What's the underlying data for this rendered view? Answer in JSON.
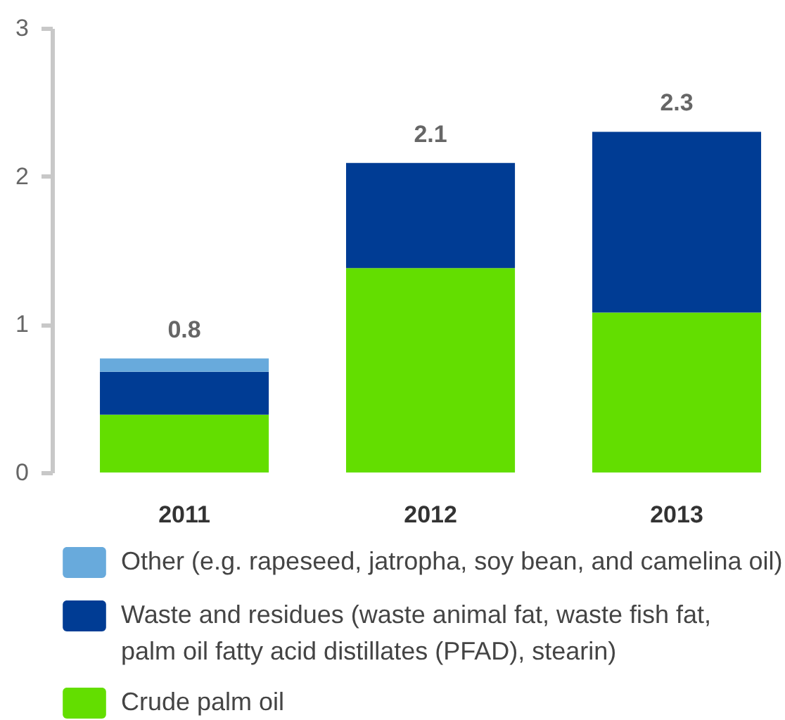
{
  "chart_data": {
    "type": "bar",
    "stacked": true,
    "categories": [
      "2011",
      "2012",
      "2013"
    ],
    "series": [
      {
        "name": "Crude palm oil",
        "color": "#63de00",
        "values": [
          0.39,
          1.38,
          1.08
        ]
      },
      {
        "name": "Waste and residues (waste animal fat, waste fish fat,\npalm oil fatty acid distillates (PFAD), stearin)",
        "color": "#003c94",
        "values": [
          0.29,
          0.71,
          1.22
        ]
      },
      {
        "name": "Other (e.g. rapeseed, jatropha, soy bean, and camelina oil)",
        "color": "#68aadc",
        "values": [
          0.09,
          null,
          null
        ]
      }
    ],
    "ylim": [
      0,
      3
    ],
    "yticks": [
      0,
      1,
      2,
      3
    ],
    "grid": false,
    "legend": "bottom",
    "totals": [
      "0.8",
      "2.1",
      "2.3"
    ]
  }
}
